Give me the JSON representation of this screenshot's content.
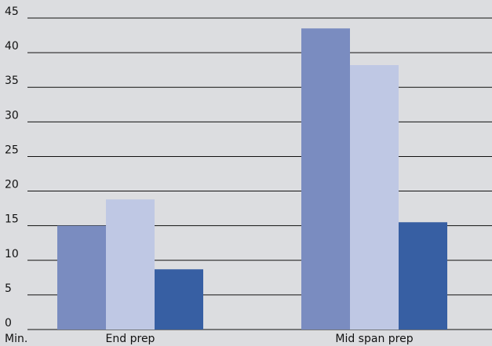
{
  "chart_data": {
    "type": "bar",
    "categories": [
      "End prep",
      "Mid span prep"
    ],
    "series": [
      {
        "values": [
          15,
          43.5
        ],
        "color": "#7a8cc0"
      },
      {
        "values": [
          18.8,
          38.2
        ],
        "color": "#bfc8e4"
      },
      {
        "values": [
          8.7,
          15.5
        ],
        "color": "#375fa3"
      }
    ],
    "y_ticks": [
      "0",
      "5",
      "10",
      "15",
      "20",
      "25",
      "30",
      "35",
      "40",
      "45"
    ],
    "y_unit_label": "Min.",
    "ylim": [
      0,
      45
    ],
    "grid": true,
    "legend": "none",
    "background_color": "#dcdde0",
    "gridline_color": "#111111"
  }
}
